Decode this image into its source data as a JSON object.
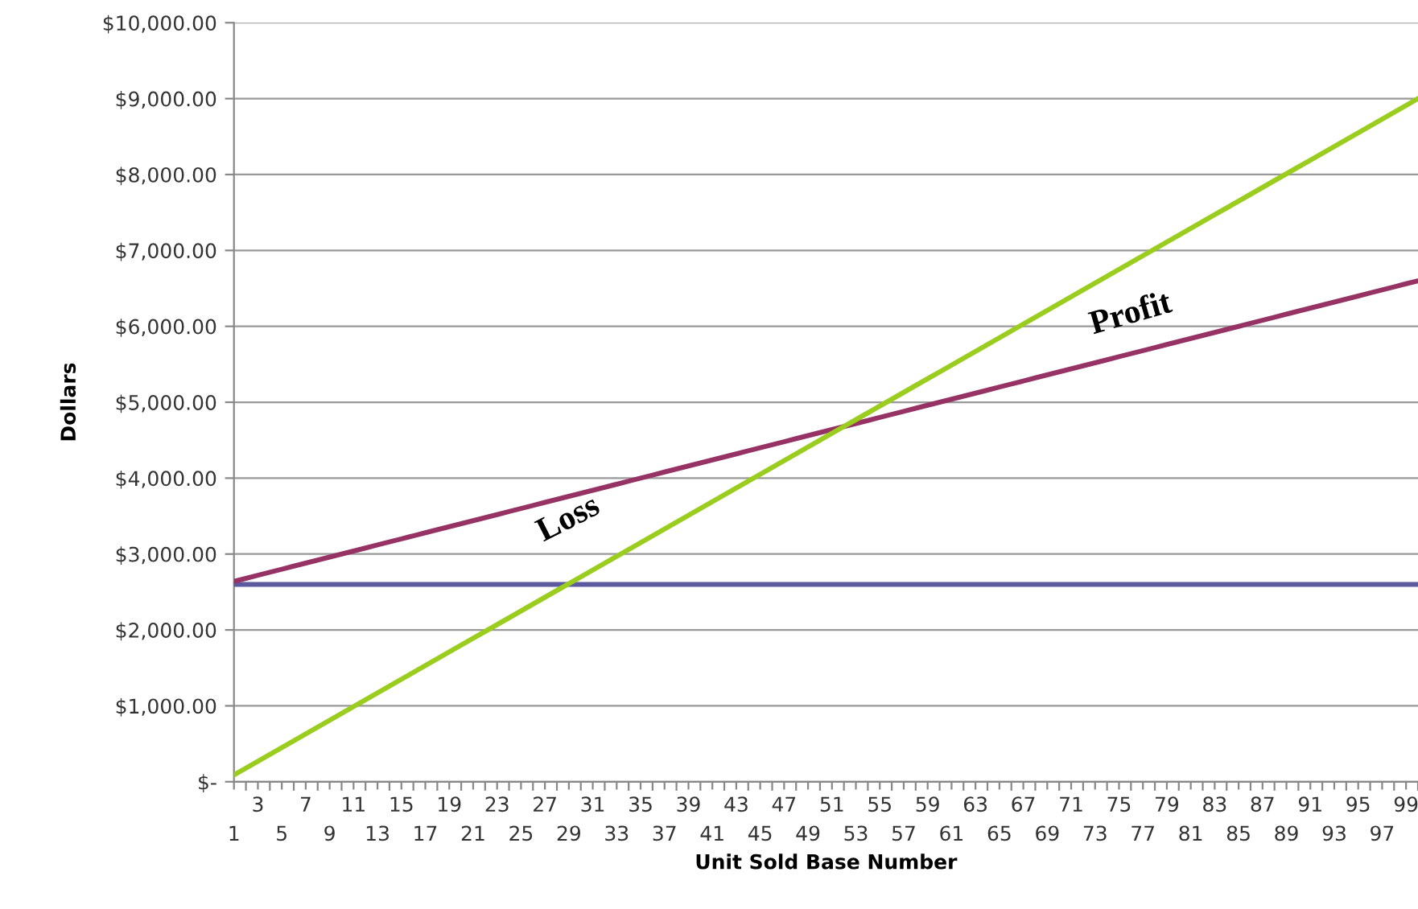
{
  "chart_data": {
    "type": "line",
    "xlabel": "Unit Sold Base Number",
    "ylabel": "Dollars",
    "categories": [
      "1",
      null,
      "3",
      null,
      "5",
      null,
      "7",
      null,
      "9",
      null,
      "11",
      null,
      "13",
      null,
      "15",
      null,
      "17",
      null,
      "19",
      null,
      "21",
      null,
      "23",
      null,
      "25",
      null,
      "27",
      null,
      "29",
      null,
      "31",
      null,
      "33",
      null,
      "35",
      null,
      "37",
      null,
      "39",
      null,
      "41",
      null,
      "43",
      null,
      "45",
      null,
      "47",
      null,
      "49",
      null,
      "51",
      null,
      "53",
      null,
      "55",
      null,
      "57",
      null,
      "59",
      null,
      "61",
      null,
      "63",
      null,
      "65",
      null,
      "67",
      null,
      "69",
      null,
      "71",
      null,
      "73",
      null,
      "75",
      null,
      "77",
      null,
      "79",
      null,
      "81",
      null,
      "83",
      null,
      "85",
      null,
      "87",
      null,
      "89",
      null,
      "91",
      null,
      "93",
      null,
      "95",
      null,
      "97",
      null,
      "99",
      null
    ],
    "series": [
      {
        "color": "#5b5a9e",
        "values": [
          2600,
          2600,
          2600,
          2600,
          2600,
          2600,
          2600,
          2600,
          2600,
          2600,
          2600,
          2600,
          2600,
          2600,
          2600,
          2600,
          2600,
          2600,
          2600,
          2600,
          2600,
          2600,
          2600,
          2600,
          2600,
          2600,
          2600,
          2600,
          2600,
          2600,
          2600,
          2600,
          2600,
          2600,
          2600,
          2600,
          2600,
          2600,
          2600,
          2600,
          2600,
          2600,
          2600,
          2600,
          2600,
          2600,
          2600,
          2600,
          2600,
          2600,
          2600,
          2600,
          2600,
          2600,
          2600,
          2600,
          2600,
          2600,
          2600,
          2600,
          2600,
          2600,
          2600,
          2600,
          2600,
          2600,
          2600,
          2600,
          2600,
          2600,
          2600,
          2600,
          2600,
          2600,
          2600,
          2600,
          2600,
          2600,
          2600,
          2600,
          2600,
          2600,
          2600,
          2600,
          2600,
          2600,
          2600,
          2600,
          2600,
          2600,
          2600,
          2600,
          2600,
          2600,
          2600,
          2600,
          2600,
          2600,
          2600,
          2600
        ]
      },
      {
        "color": "#963264",
        "values": [
          2640,
          2680,
          2720,
          2760,
          2800,
          2840,
          2880,
          2920,
          2960,
          3000,
          3040,
          3080,
          3120,
          3160,
          3200,
          3240,
          3280,
          3320,
          3360,
          3400,
          3440,
          3480,
          3520,
          3560,
          3600,
          3640,
          3680,
          3720,
          3760,
          3800,
          3840,
          3880,
          3920,
          3960,
          4000,
          4040,
          4080,
          4120,
          4160,
          4200,
          4240,
          4280,
          4320,
          4360,
          4400,
          4440,
          4480,
          4520,
          4560,
          4600,
          4640,
          4680,
          4720,
          4760,
          4800,
          4840,
          4880,
          4920,
          4960,
          5000,
          5040,
          5080,
          5120,
          5160,
          5200,
          5240,
          5280,
          5320,
          5360,
          5400,
          5440,
          5480,
          5520,
          5560,
          5600,
          5640,
          5680,
          5720,
          5760,
          5800,
          5840,
          5880,
          5920,
          5960,
          6000,
          6040,
          6080,
          6120,
          6160,
          6200,
          6240,
          6280,
          6320,
          6360,
          6400,
          6440,
          6480,
          6520,
          6560,
          6600
        ]
      },
      {
        "color": "#9acd1e",
        "values": [
          90,
          180,
          270,
          360,
          450,
          540,
          630,
          720,
          810,
          900,
          990,
          1080,
          1170,
          1260,
          1350,
          1440,
          1530,
          1620,
          1710,
          1800,
          1890,
          1980,
          2070,
          2160,
          2250,
          2340,
          2430,
          2520,
          2610,
          2700,
          2790,
          2880,
          2970,
          3060,
          3150,
          3240,
          3330,
          3420,
          3510,
          3600,
          3690,
          3780,
          3870,
          3960,
          4050,
          4140,
          4230,
          4320,
          4410,
          4500,
          4590,
          4680,
          4770,
          4860,
          4950,
          5040,
          5130,
          5220,
          5310,
          5400,
          5490,
          5580,
          5670,
          5760,
          5850,
          5940,
          6030,
          6120,
          6210,
          6300,
          6390,
          6480,
          6570,
          6660,
          6750,
          6840,
          6930,
          7020,
          7110,
          7200,
          7290,
          7380,
          7470,
          7560,
          7650,
          7740,
          7830,
          7920,
          8010,
          8100,
          8190,
          8280,
          8370,
          8460,
          8550,
          8640,
          8730,
          8820,
          8910,
          9000
        ]
      }
    ],
    "ylim": [
      0,
      10000
    ],
    "yticks": [
      {
        "value": 0,
        "label": "$-"
      },
      {
        "value": 1000,
        "label": "$1,000.00"
      },
      {
        "value": 2000,
        "label": "$2,000.00"
      },
      {
        "value": 3000,
        "label": "$3,000.00"
      },
      {
        "value": 4000,
        "label": "$4,000.00"
      },
      {
        "value": 5000,
        "label": "$5,000.00"
      },
      {
        "value": 6000,
        "label": "$6,000.00"
      },
      {
        "value": 7000,
        "label": "$7,000.00"
      },
      {
        "value": 8000,
        "label": "$8,000.00"
      },
      {
        "value": 9000,
        "label": "$9,000.00"
      },
      {
        "value": 10000,
        "label": "$10,000.00"
      }
    ],
    "grid": "y",
    "legend": false,
    "marker": "none",
    "line_style": "solid",
    "annotations": [
      "Loss",
      "Profit"
    ]
  }
}
